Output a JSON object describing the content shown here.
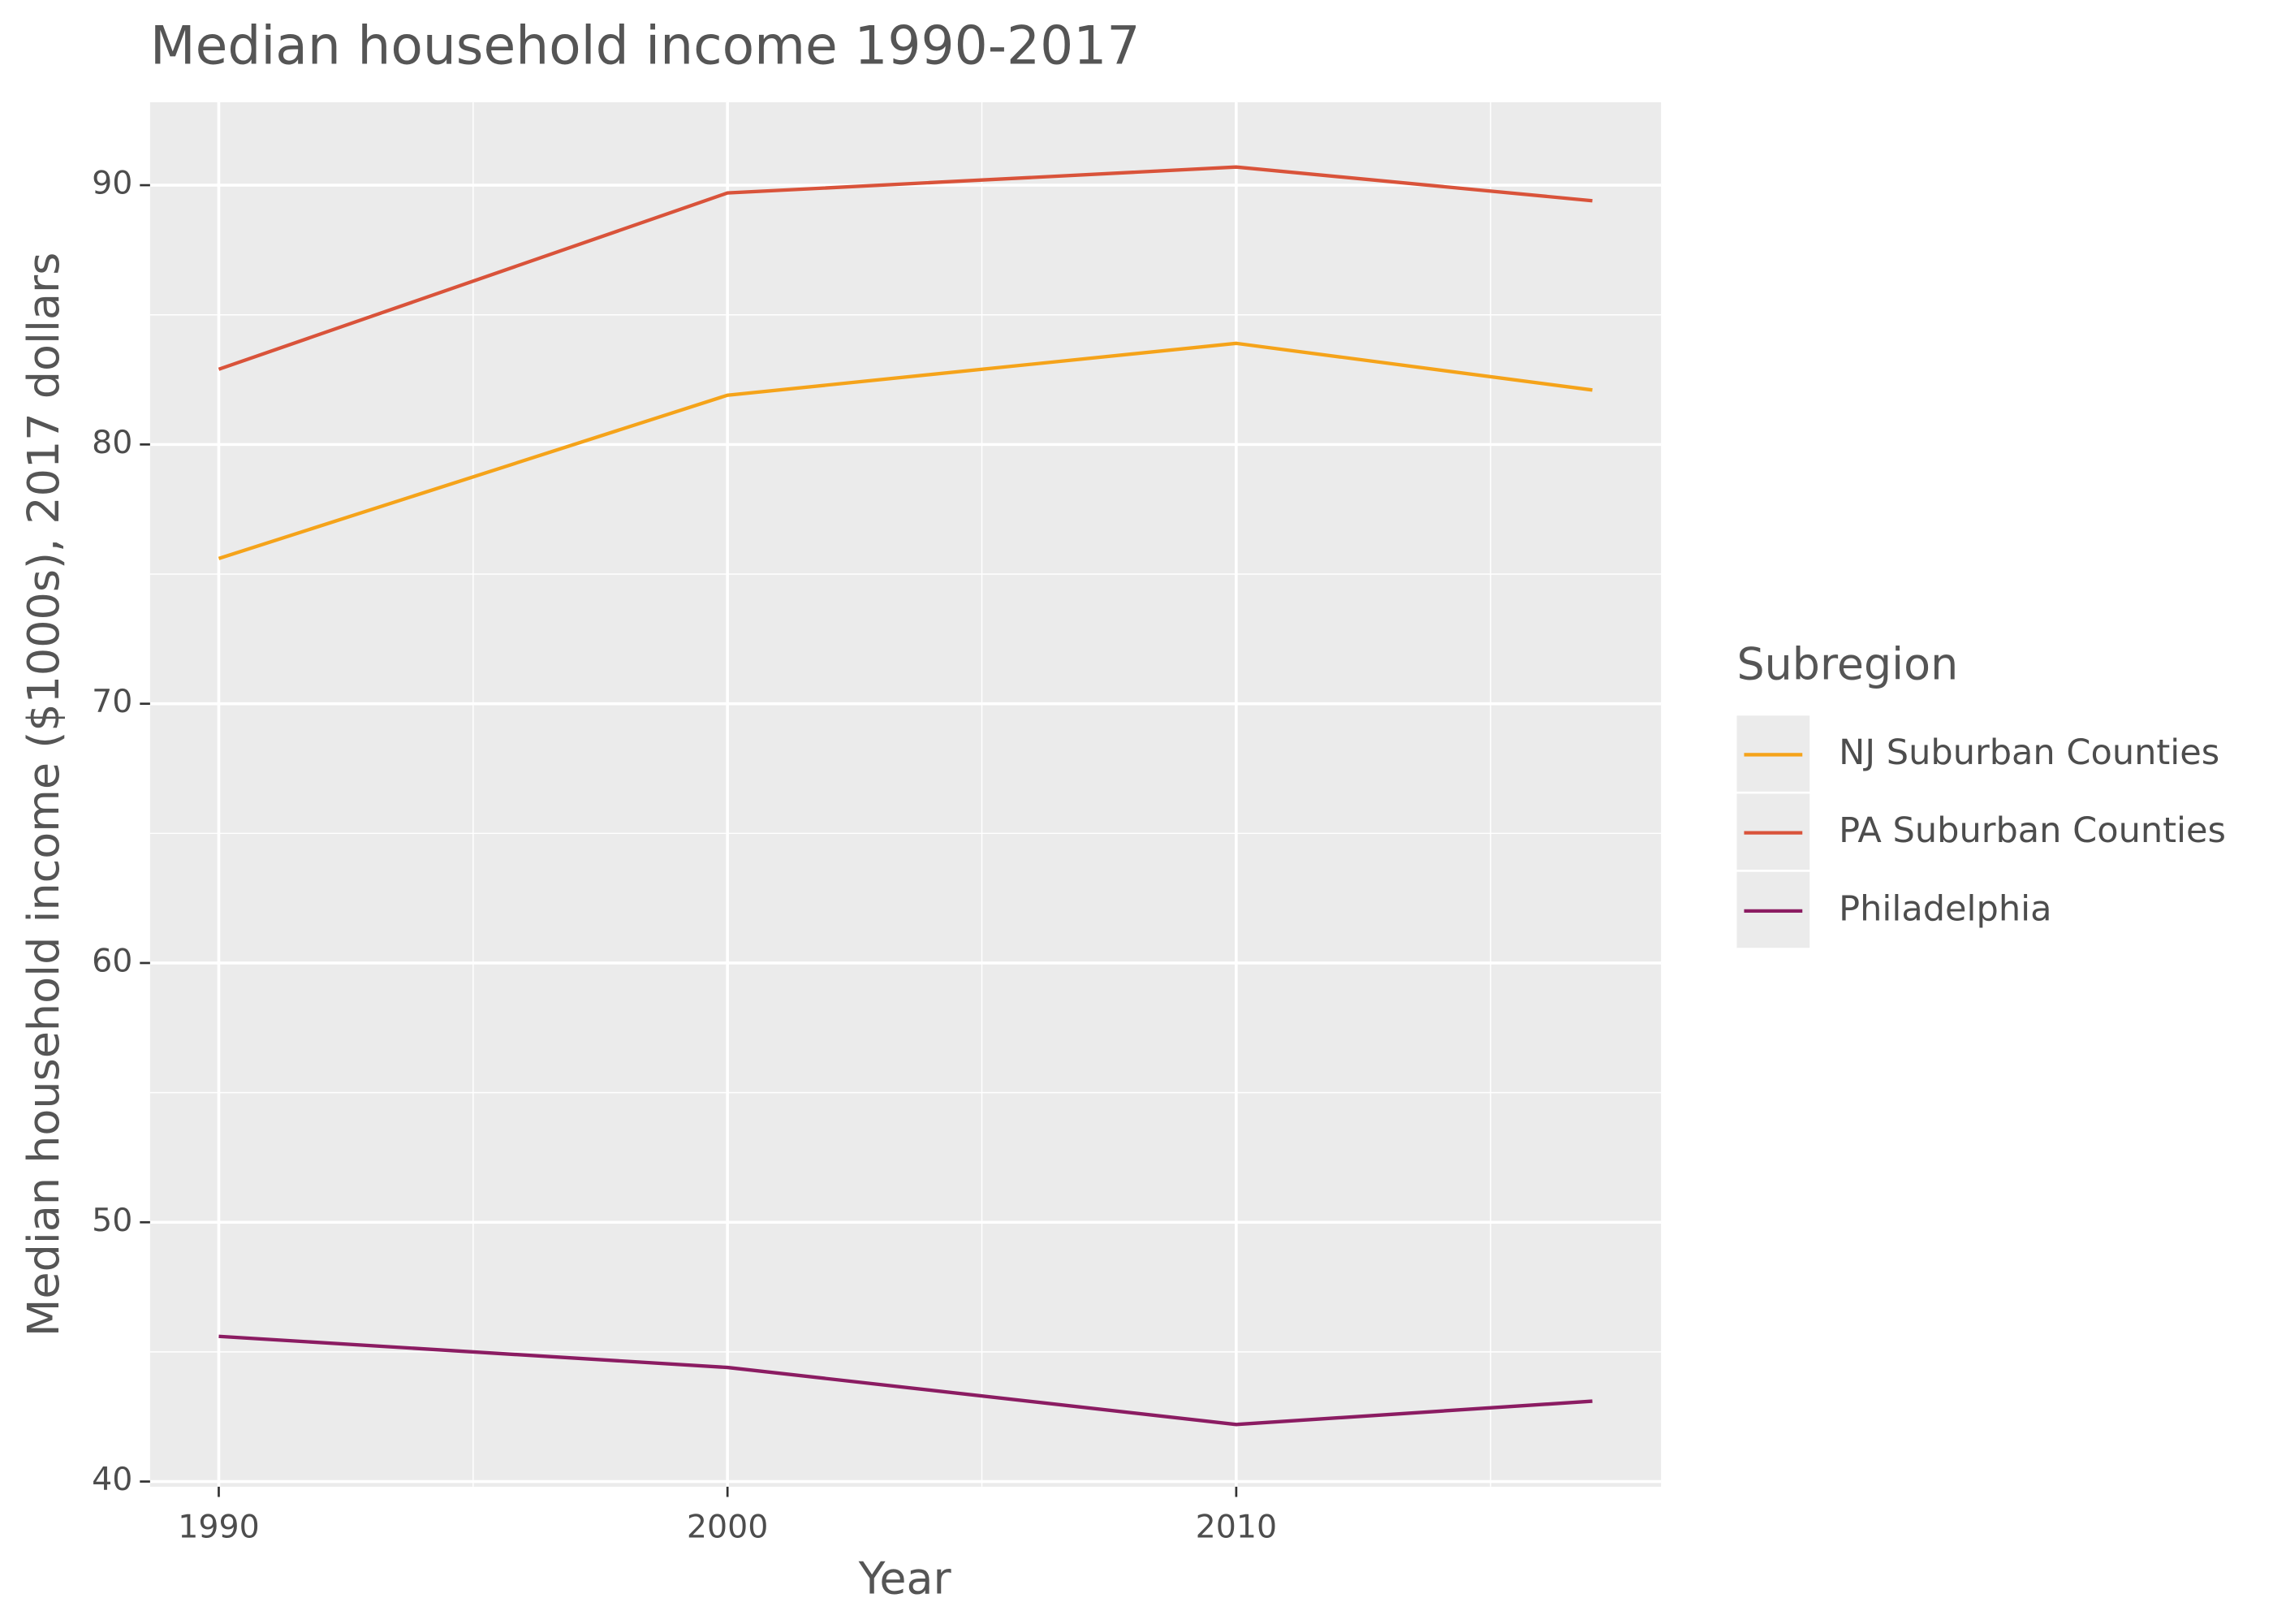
{
  "chart_data": {
    "type": "line",
    "title": "Median household income 1990-2017",
    "x_label": "Year",
    "y_label": "Median household income ($1000s), 2017 dollars",
    "x": [
      1990,
      2000,
      2010,
      2017
    ],
    "series": [
      {
        "name": "NJ Suburban Counties",
        "color": "#f5a31a",
        "values": [
          75.6,
          81.9,
          83.9,
          82.1
        ]
      },
      {
        "name": "PA Suburban Counties",
        "color": "#d9533a",
        "values": [
          82.9,
          89.7,
          90.7,
          89.4
        ]
      },
      {
        "name": "Philadelphia",
        "color": "#8b1c62",
        "values": [
          45.6,
          44.4,
          42.2,
          43.1
        ]
      }
    ],
    "xlim": [
      1988.65,
      2018.35
    ],
    "xticks": [
      1990,
      2000,
      2010
    ],
    "ylim": [
      39.8,
      93.2
    ],
    "yticks": [
      40,
      50,
      60,
      70,
      80,
      90
    ],
    "grid": true,
    "legend_title": "Subregion",
    "legend_position": "right"
  }
}
